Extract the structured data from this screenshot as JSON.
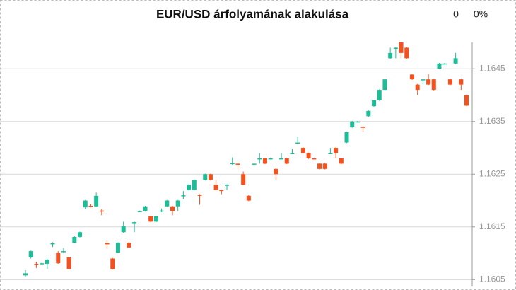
{
  "header": {
    "change": "0",
    "change_percent": "0%"
  },
  "chart_data": {
    "type": "candlestick",
    "title": "EUR/USD árfolyamának alakulása",
    "up_color": "#1fbc98",
    "down_color": "#f4511e",
    "grid": true,
    "y_axis_side": "right",
    "ylim": [
      1.16037,
      1.165
    ],
    "yticks": [
      1.1605,
      1.1615,
      1.1625,
      1.1635,
      1.1645
    ],
    "open": [
      1.16058,
      1.16092,
      1.1608,
      1.1608,
      1.1608,
      1.16118,
      1.16101,
      1.16103,
      1.16092,
      1.1612,
      1.16131,
      1.16187,
      1.1619,
      1.16189,
      1.16181,
      1.16119,
      1.1609,
      1.16101,
      1.1614,
      1.1612,
      1.16158,
      1.16179,
      1.1618,
      1.1617,
      1.1616,
      1.1618,
      1.16189,
      1.16189,
      1.16189,
      1.16209,
      1.1622,
      1.1622,
      1.16211,
      1.16239,
      1.1625,
      1.1623,
      1.1622,
      1.16229,
      1.1627,
      1.1627,
      1.1625,
      1.16209,
      1.16269,
      1.16279,
      1.1628,
      1.16279,
      1.1626,
      1.16279,
      1.1628,
      1.16289,
      1.16309,
      1.163,
      1.1629,
      1.1628,
      1.1627,
      1.1627,
      1.16289,
      1.163,
      1.1628,
      1.1631,
      1.16339,
      1.16349,
      1.1634,
      1.1636,
      1.16379,
      1.1639,
      1.1641,
      1.1647,
      1.16489,
      1.165,
      1.1649,
      1.16439,
      1.1642,
      1.16429,
      1.1643,
      1.1643,
      1.1645,
      1.16459,
      1.1643,
      1.1646,
      1.1643,
      1.164
    ],
    "high": [
      1.16068,
      1.16105,
      1.16083,
      1.16082,
      1.16089,
      1.16121,
      1.16104,
      1.1611,
      1.16093,
      1.16132,
      1.16141,
      1.16201,
      1.16193,
      1.16215,
      1.16184,
      1.16124,
      1.16091,
      1.16121,
      1.1616,
      1.16121,
      1.1616,
      1.16181,
      1.1619,
      1.16171,
      1.16171,
      1.16185,
      1.16201,
      1.1619,
      1.16201,
      1.16218,
      1.16231,
      1.1624,
      1.16212,
      1.16251,
      1.16251,
      1.1624,
      1.16221,
      1.16231,
      1.16282,
      1.16271,
      1.16255,
      1.1621,
      1.16271,
      1.1629,
      1.16281,
      1.16281,
      1.16261,
      1.1629,
      1.16281,
      1.16298,
      1.16321,
      1.16301,
      1.16291,
      1.16281,
      1.16271,
      1.16271,
      1.163,
      1.16301,
      1.16281,
      1.16331,
      1.16351,
      1.16351,
      1.16341,
      1.16371,
      1.16391,
      1.16411,
      1.16431,
      1.1649,
      1.16491,
      1.16501,
      1.16491,
      1.1644,
      1.16421,
      1.16431,
      1.1644,
      1.16431,
      1.16461,
      1.16461,
      1.16431,
      1.1648,
      1.16431,
      1.16401
    ],
    "low": [
      1.16056,
      1.1609,
      1.16072,
      1.16079,
      1.1607,
      1.16112,
      1.1608,
      1.161,
      1.16069,
      1.16119,
      1.1613,
      1.16184,
      1.16187,
      1.16188,
      1.16172,
      1.16109,
      1.16069,
      1.161,
      1.16139,
      1.1611,
      1.1614,
      1.16178,
      1.16179,
      1.16159,
      1.16159,
      1.16178,
      1.16188,
      1.16172,
      1.1618,
      1.16203,
      1.16219,
      1.16219,
      1.16192,
      1.16238,
      1.16238,
      1.16219,
      1.16212,
      1.1622,
      1.16268,
      1.1626,
      1.16229,
      1.16199,
      1.16268,
      1.1627,
      1.16269,
      1.16278,
      1.1624,
      1.16278,
      1.16269,
      1.16288,
      1.16308,
      1.16289,
      1.16279,
      1.16278,
      1.16259,
      1.16259,
      1.16288,
      1.1628,
      1.16269,
      1.16309,
      1.16338,
      1.16348,
      1.1633,
      1.16359,
      1.16378,
      1.16389,
      1.16409,
      1.16469,
      1.1647,
      1.1647,
      1.16469,
      1.16429,
      1.164,
      1.1642,
      1.16419,
      1.16409,
      1.16449,
      1.16458,
      1.16419,
      1.16459,
      1.1641,
      1.16379
    ],
    "close": [
      1.16062,
      1.16104,
      1.16079,
      1.16081,
      1.16088,
      1.16119,
      1.16081,
      1.16104,
      1.1607,
      1.16131,
      1.1614,
      1.162,
      1.16189,
      1.16209,
      1.16179,
      1.16117,
      1.1607,
      1.1612,
      1.16151,
      1.16111,
      1.16159,
      1.1618,
      1.16189,
      1.1616,
      1.1617,
      1.16181,
      1.162,
      1.1618,
      1.162,
      1.1621,
      1.1623,
      1.16239,
      1.16209,
      1.1625,
      1.16239,
      1.1622,
      1.16219,
      1.1623,
      1.16271,
      1.16268,
      1.1623,
      1.162,
      1.1627,
      1.1628,
      1.1627,
      1.1628,
      1.1625,
      1.1628,
      1.1627,
      1.1629,
      1.1631,
      1.1629,
      1.1628,
      1.16279,
      1.1626,
      1.1626,
      1.1629,
      1.1629,
      1.1627,
      1.1633,
      1.1635,
      1.1635,
      1.16338,
      1.1637,
      1.1639,
      1.1641,
      1.1643,
      1.1648,
      1.1649,
      1.1648,
      1.1647,
      1.1643,
      1.1641,
      1.1643,
      1.1642,
      1.1641,
      1.1646,
      1.1646,
      1.1642,
      1.1647,
      1.1642,
      1.1638
    ]
  }
}
